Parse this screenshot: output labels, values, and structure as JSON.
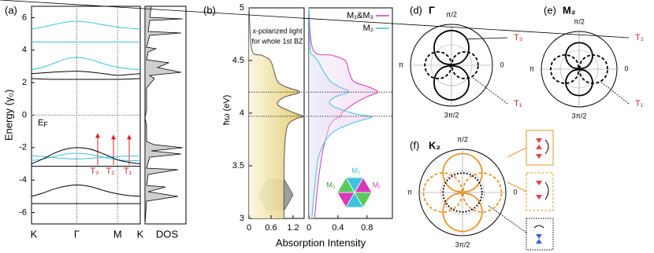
{
  "chart_data": [
    {
      "type": "line",
      "panel": "(a)",
      "ylabel": "Energy (γ₀)",
      "dos_label": "DOS",
      "x": [
        0,
        0.25,
        0.5,
        0.75,
        1,
        1.3,
        1.6,
        1.9,
        2.15,
        2.4
      ],
      "xlim": [
        0,
        2.4
      ],
      "xticks": [
        {
          "value": 0,
          "label": "K"
        },
        {
          "value": 1,
          "label": "Γ"
        },
        {
          "value": 1.9,
          "label": "M"
        },
        {
          "value": 2.4,
          "label": "K"
        }
      ],
      "ylim": [
        -6.7,
        6.7
      ],
      "yticks": [
        -6,
        -4,
        -2,
        0,
        2,
        4,
        6
      ],
      "fermi": {
        "main": "E",
        "sub": "F"
      },
      "transitions": [
        "T₃",
        "T₂",
        "T₁"
      ],
      "series": [
        {
          "color": "#3ec3dc",
          "values": [
            5.3,
            5.42,
            5.58,
            5.72,
            5.78,
            5.7,
            5.55,
            5.42,
            5.35,
            5.3
          ]
        },
        {
          "color": "#3ec3dc",
          "values": [
            4.5,
            4.5,
            4.5,
            4.5,
            4.5,
            4.5,
            4.5,
            4.5,
            4.5,
            4.5
          ]
        },
        {
          "color": "#3ec3dc",
          "values": [
            2.8,
            2.95,
            3.2,
            3.45,
            3.55,
            3.42,
            3.15,
            2.95,
            2.85,
            2.8
          ]
        },
        {
          "color": "#3ec3dc",
          "values": [
            -2.5,
            -2.55,
            -2.62,
            -2.68,
            -2.7,
            -2.66,
            -2.6,
            -2.55,
            -2.52,
            -2.5
          ]
        },
        {
          "color": "#3ec3dc",
          "values": [
            -2.8,
            -2.7,
            -2.55,
            -2.4,
            -2.35,
            -2.42,
            -2.6,
            -2.75,
            -2.8,
            -2.8
          ]
        },
        {
          "color": "#000000",
          "values": [
            2.55,
            2.6,
            2.65,
            2.68,
            2.7,
            2.65,
            2.55,
            2.45,
            2.5,
            2.55
          ]
        },
        {
          "color": "#000000",
          "values": [
            2.25,
            2.22,
            2.2,
            2.2,
            2.2,
            2.2,
            2.2,
            2.2,
            2.22,
            2.25
          ]
        },
        {
          "color": "#000000",
          "values": [
            -3.0,
            -2.7,
            -2.35,
            -2.1,
            -2.0,
            -2.1,
            -2.4,
            -2.75,
            -2.9,
            -3.0
          ]
        },
        {
          "color": "#000000",
          "values": [
            -3.15,
            -3.15,
            -3.15,
            -3.15,
            -3.15,
            -3.15,
            -3.15,
            -3.15,
            -3.15,
            -3.15
          ]
        },
        {
          "color": "#000000",
          "values": [
            -5.0,
            -4.8,
            -4.55,
            -4.38,
            -4.3,
            -4.4,
            -4.65,
            -4.85,
            -4.95,
            -5.0
          ]
        },
        {
          "color": "#000000",
          "values": [
            -5.45,
            -5.45,
            -5.45,
            -5.45,
            -5.45,
            -5.45,
            -5.45,
            -5.45,
            -5.45,
            -5.45
          ]
        }
      ]
    },
    {
      "type": "area",
      "panel": "(b)",
      "ylabel": "ħω (eV)",
      "xlabel": "Absorption Intensity",
      "note": [
        "x-polarized light",
        "for whole 1st BZ"
      ],
      "y": [
        3.0,
        3.3,
        3.6,
        3.8,
        3.9,
        3.95,
        3.97,
        4.0,
        4.08,
        4.15,
        4.2,
        4.25,
        4.3,
        4.4,
        4.5,
        4.55,
        4.6,
        5.0
      ],
      "xlim": [
        0,
        1.5
      ],
      "xticks": [
        0,
        0.6,
        1.2
      ],
      "ylim": [
        3,
        5
      ],
      "yticks": [
        3,
        3.5,
        4,
        4.5,
        5
      ],
      "series": [
        {
          "color": "#d9b94a",
          "values": [
            0.95,
            0.95,
            0.96,
            1.0,
            1.08,
            1.3,
            1.48,
            1.25,
            0.78,
            0.95,
            1.38,
            1.0,
            0.78,
            0.68,
            0.58,
            0.35,
            0.08,
            0
          ]
        }
      ]
    },
    {
      "type": "area",
      "legend": "upper right",
      "inset_labels": [
        "M₁",
        "M₂",
        "M₃"
      ],
      "y": [
        3.0,
        3.3,
        3.6,
        3.8,
        3.9,
        3.95,
        3.97,
        4.0,
        4.08,
        4.15,
        4.2,
        4.25,
        4.3,
        4.4,
        4.5,
        4.55,
        4.6,
        5.0
      ],
      "xlim": [
        0,
        1.15
      ],
      "xticks": [
        0,
        0.4,
        0.8
      ],
      "ylim": [
        3,
        5
      ],
      "hlines": [
        3.97,
        4.2
      ],
      "series": [
        {
          "name": "M₁&M₃",
          "color": "#d63aba",
          "values": [
            0.08,
            0.12,
            0.18,
            0.25,
            0.3,
            0.38,
            0.45,
            0.45,
            0.6,
            0.78,
            0.95,
            0.82,
            0.62,
            0.55,
            0.5,
            0.32,
            0.06,
            0
          ]
        },
        {
          "name": "M₂",
          "color": "#3ec3dc",
          "values": [
            0.04,
            0.08,
            0.14,
            0.3,
            0.58,
            0.82,
            0.85,
            0.6,
            0.3,
            0.35,
            0.55,
            0.42,
            0.3,
            0.2,
            0.12,
            0.06,
            0.02,
            0
          ]
        }
      ]
    },
    {
      "type": "polar",
      "panel": "(d)",
      "title": "Γ",
      "theta": [
        0,
        15,
        30,
        45,
        60,
        75,
        90,
        105,
        120,
        135,
        150,
        165,
        180,
        195,
        210,
        225,
        240,
        255,
        270,
        285,
        300,
        315,
        330,
        345
      ],
      "theta_ticks": [
        {
          "value": 0,
          "label": "0"
        },
        {
          "value": 90,
          "label": "π/2"
        },
        {
          "value": 180,
          "label": "π"
        },
        {
          "value": 270,
          "label": "3π/2"
        }
      ],
      "rlim": [
        0,
        1
      ],
      "rticks": [
        0.5,
        1
      ],
      "series": [
        {
          "name": "T₃",
          "color": "#000000",
          "style": "solid",
          "values": [
            0,
            0.22,
            0.43,
            0.6,
            0.74,
            0.82,
            0.85,
            0.82,
            0.74,
            0.6,
            0.43,
            0.22,
            0,
            0.22,
            0.43,
            0.6,
            0.74,
            0.82,
            0.85,
            0.82,
            0.74,
            0.6,
            0.43,
            0.22
          ]
        },
        {
          "name": "T₁",
          "color": "#000000",
          "style": "dashed",
          "values": [
            0.65,
            0.63,
            0.57,
            0.46,
            0.33,
            0.17,
            0,
            0.17,
            0.33,
            0.46,
            0.57,
            0.63,
            0.65,
            0.63,
            0.57,
            0.46,
            0.33,
            0.17,
            0,
            0.17,
            0.33,
            0.46,
            0.57,
            0.63
          ]
        }
      ]
    },
    {
      "type": "polar",
      "panel": "(e)",
      "title": "M₂",
      "theta": [
        0,
        15,
        30,
        45,
        60,
        75,
        90,
        105,
        120,
        135,
        150,
        165,
        180,
        195,
        210,
        225,
        240,
        255,
        270,
        285,
        300,
        315,
        330,
        345
      ],
      "theta_ticks": [
        {
          "value": 0,
          "label": "0"
        },
        {
          "value": 90,
          "label": "π/2"
        },
        {
          "value": 180,
          "label": "π"
        },
        {
          "value": 270,
          "label": "3π/2"
        }
      ],
      "rlim": [
        0,
        1
      ],
      "rticks": [
        0.5,
        1
      ],
      "series": [
        {
          "name": "T₂",
          "color": "#000000",
          "style": "solid",
          "values": [
            0,
            0.18,
            0.35,
            0.5,
            0.61,
            0.68,
            0.7,
            0.68,
            0.61,
            0.5,
            0.35,
            0.18,
            0,
            0.18,
            0.35,
            0.5,
            0.61,
            0.68,
            0.7,
            0.68,
            0.61,
            0.5,
            0.35,
            0.18
          ]
        },
        {
          "name": "T₁",
          "color": "#000000",
          "style": "dashed",
          "values": [
            0.75,
            0.73,
            0.65,
            0.53,
            0.38,
            0.2,
            0,
            0.2,
            0.38,
            0.53,
            0.65,
            0.73,
            0.75,
            0.73,
            0.65,
            0.53,
            0.38,
            0.2,
            0,
            0.2,
            0.38,
            0.53,
            0.65,
            0.73
          ]
        }
      ]
    },
    {
      "type": "polar",
      "panel": "(f)",
      "title": "K₂",
      "theta": [
        0,
        15,
        30,
        45,
        60,
        75,
        90,
        105,
        120,
        135,
        150,
        165,
        180,
        195,
        210,
        225,
        240,
        255,
        270,
        285,
        300,
        315,
        330,
        345
      ],
      "theta_ticks": [
        {
          "value": 0,
          "label": "0"
        },
        {
          "value": 90,
          "label": "π/2"
        },
        {
          "value": 180,
          "label": "π"
        },
        {
          "value": 270,
          "label": "3π/2"
        }
      ],
      "rlim": [
        0,
        1
      ],
      "rticks": [
        0.5,
        1
      ],
      "series": [
        {
          "color": "#e8952e",
          "style": "solid",
          "values": [
            0,
            0.23,
            0.45,
            0.64,
            0.78,
            0.87,
            0.9,
            0.87,
            0.78,
            0.64,
            0.45,
            0.23,
            0,
            0.23,
            0.45,
            0.64,
            0.78,
            0.87,
            0.9,
            0.87,
            0.78,
            0.64,
            0.45,
            0.23
          ]
        },
        {
          "color": "#e8952e",
          "style": "dashed",
          "values": [
            0.9,
            0.87,
            0.78,
            0.64,
            0.45,
            0.23,
            0,
            0.23,
            0.45,
            0.64,
            0.78,
            0.87,
            0.9,
            0.87,
            0.78,
            0.64,
            0.45,
            0.23,
            0,
            0.23,
            0.45,
            0.64,
            0.78,
            0.87
          ]
        },
        {
          "color": "#000000",
          "style": "dotted",
          "values": [
            0.45,
            0.45,
            0.45,
            0.45,
            0.45,
            0.45,
            0.45,
            0.45,
            0.45,
            0.45,
            0.45,
            0.45,
            0.45,
            0.45,
            0.45,
            0.45,
            0.45,
            0.45,
            0.45,
            0.45,
            0.45,
            0.45,
            0.45,
            0.45
          ]
        }
      ]
    }
  ]
}
